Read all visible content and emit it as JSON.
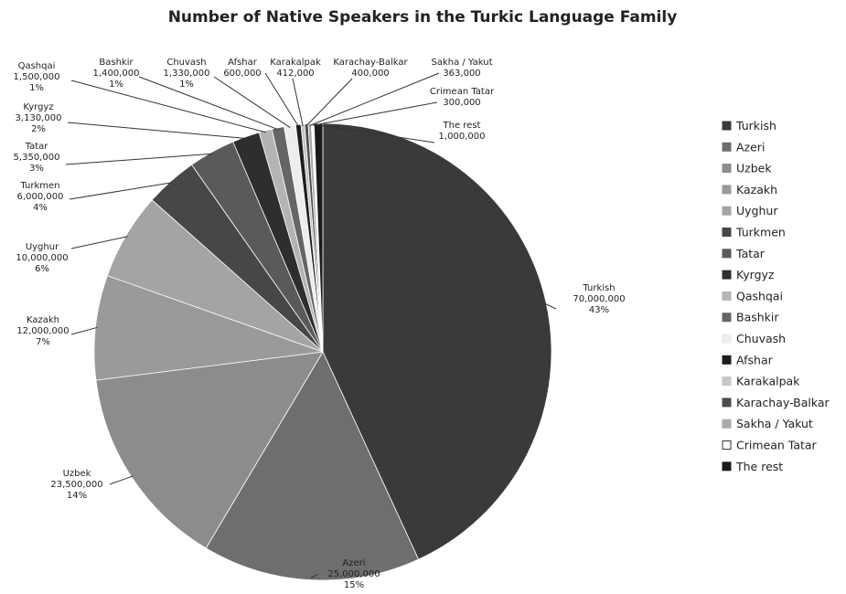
{
  "chart_data": {
    "type": "pie",
    "title": "Number of Native Speakers in the Turkic Language Family",
    "legend_position": "right",
    "slices": [
      {
        "name": "Turkish",
        "value": 70000000,
        "value_label": "70,000,000",
        "percent_label": "43%",
        "color": "#3a3a3a"
      },
      {
        "name": "Azeri",
        "value": 25000000,
        "value_label": "25,000,000",
        "percent_label": "15%",
        "color": "#6e6e6e"
      },
      {
        "name": "Uzbek",
        "value": 23500000,
        "value_label": "23,500,000",
        "percent_label": "14%",
        "color": "#8c8c8c"
      },
      {
        "name": "Kazakh",
        "value": 12000000,
        "value_label": "12,000,000",
        "percent_label": "7%",
        "color": "#9a9a9a"
      },
      {
        "name": "Uyghur",
        "value": 10000000,
        "value_label": "10,000,000",
        "percent_label": "6%",
        "color": "#a4a4a4"
      },
      {
        "name": "Turkmen",
        "value": 6000000,
        "value_label": "6,000,000",
        "percent_label": "4%",
        "color": "#474747"
      },
      {
        "name": "Tatar",
        "value": 5350000,
        "value_label": "5,350,000",
        "percent_label": "3%",
        "color": "#5a5a5a"
      },
      {
        "name": "Kyrgyz",
        "value": 3130000,
        "value_label": "3,130,000",
        "percent_label": "2%",
        "color": "#2e2e2e"
      },
      {
        "name": "Qashqai",
        "value": 1500000,
        "value_label": "1,500,000",
        "percent_label": "1%",
        "color": "#b4b4b4"
      },
      {
        "name": "Bashkir",
        "value": 1400000,
        "value_label": "1,400,000",
        "percent_label": "1%",
        "color": "#656565"
      },
      {
        "name": "Chuvash",
        "value": 1330000,
        "value_label": "1,330,000",
        "percent_label": "1%",
        "color": "#ededed"
      },
      {
        "name": "Afshar",
        "value": 600000,
        "value_label": "600,000",
        "percent_label": "",
        "color": "#1e1e1e"
      },
      {
        "name": "Karakalpak",
        "value": 412000,
        "value_label": "412,000",
        "percent_label": "",
        "color": "#c6c6c6"
      },
      {
        "name": "Karachay-Balkar",
        "value": 400000,
        "value_label": "400,000",
        "percent_label": "",
        "color": "#4c4c4c"
      },
      {
        "name": "Sakha / Yakut",
        "value": 363000,
        "value_label": "363,000",
        "percent_label": "",
        "color": "#a9a9a9"
      },
      {
        "name": "Crimean Tatar",
        "value": 300000,
        "value_label": "300,000",
        "percent_label": "",
        "color": "#ffffff"
      },
      {
        "name": "The rest",
        "value": 1000000,
        "value_label": "1,000,000",
        "percent_label": "",
        "color": "#1a1a1a"
      }
    ]
  }
}
